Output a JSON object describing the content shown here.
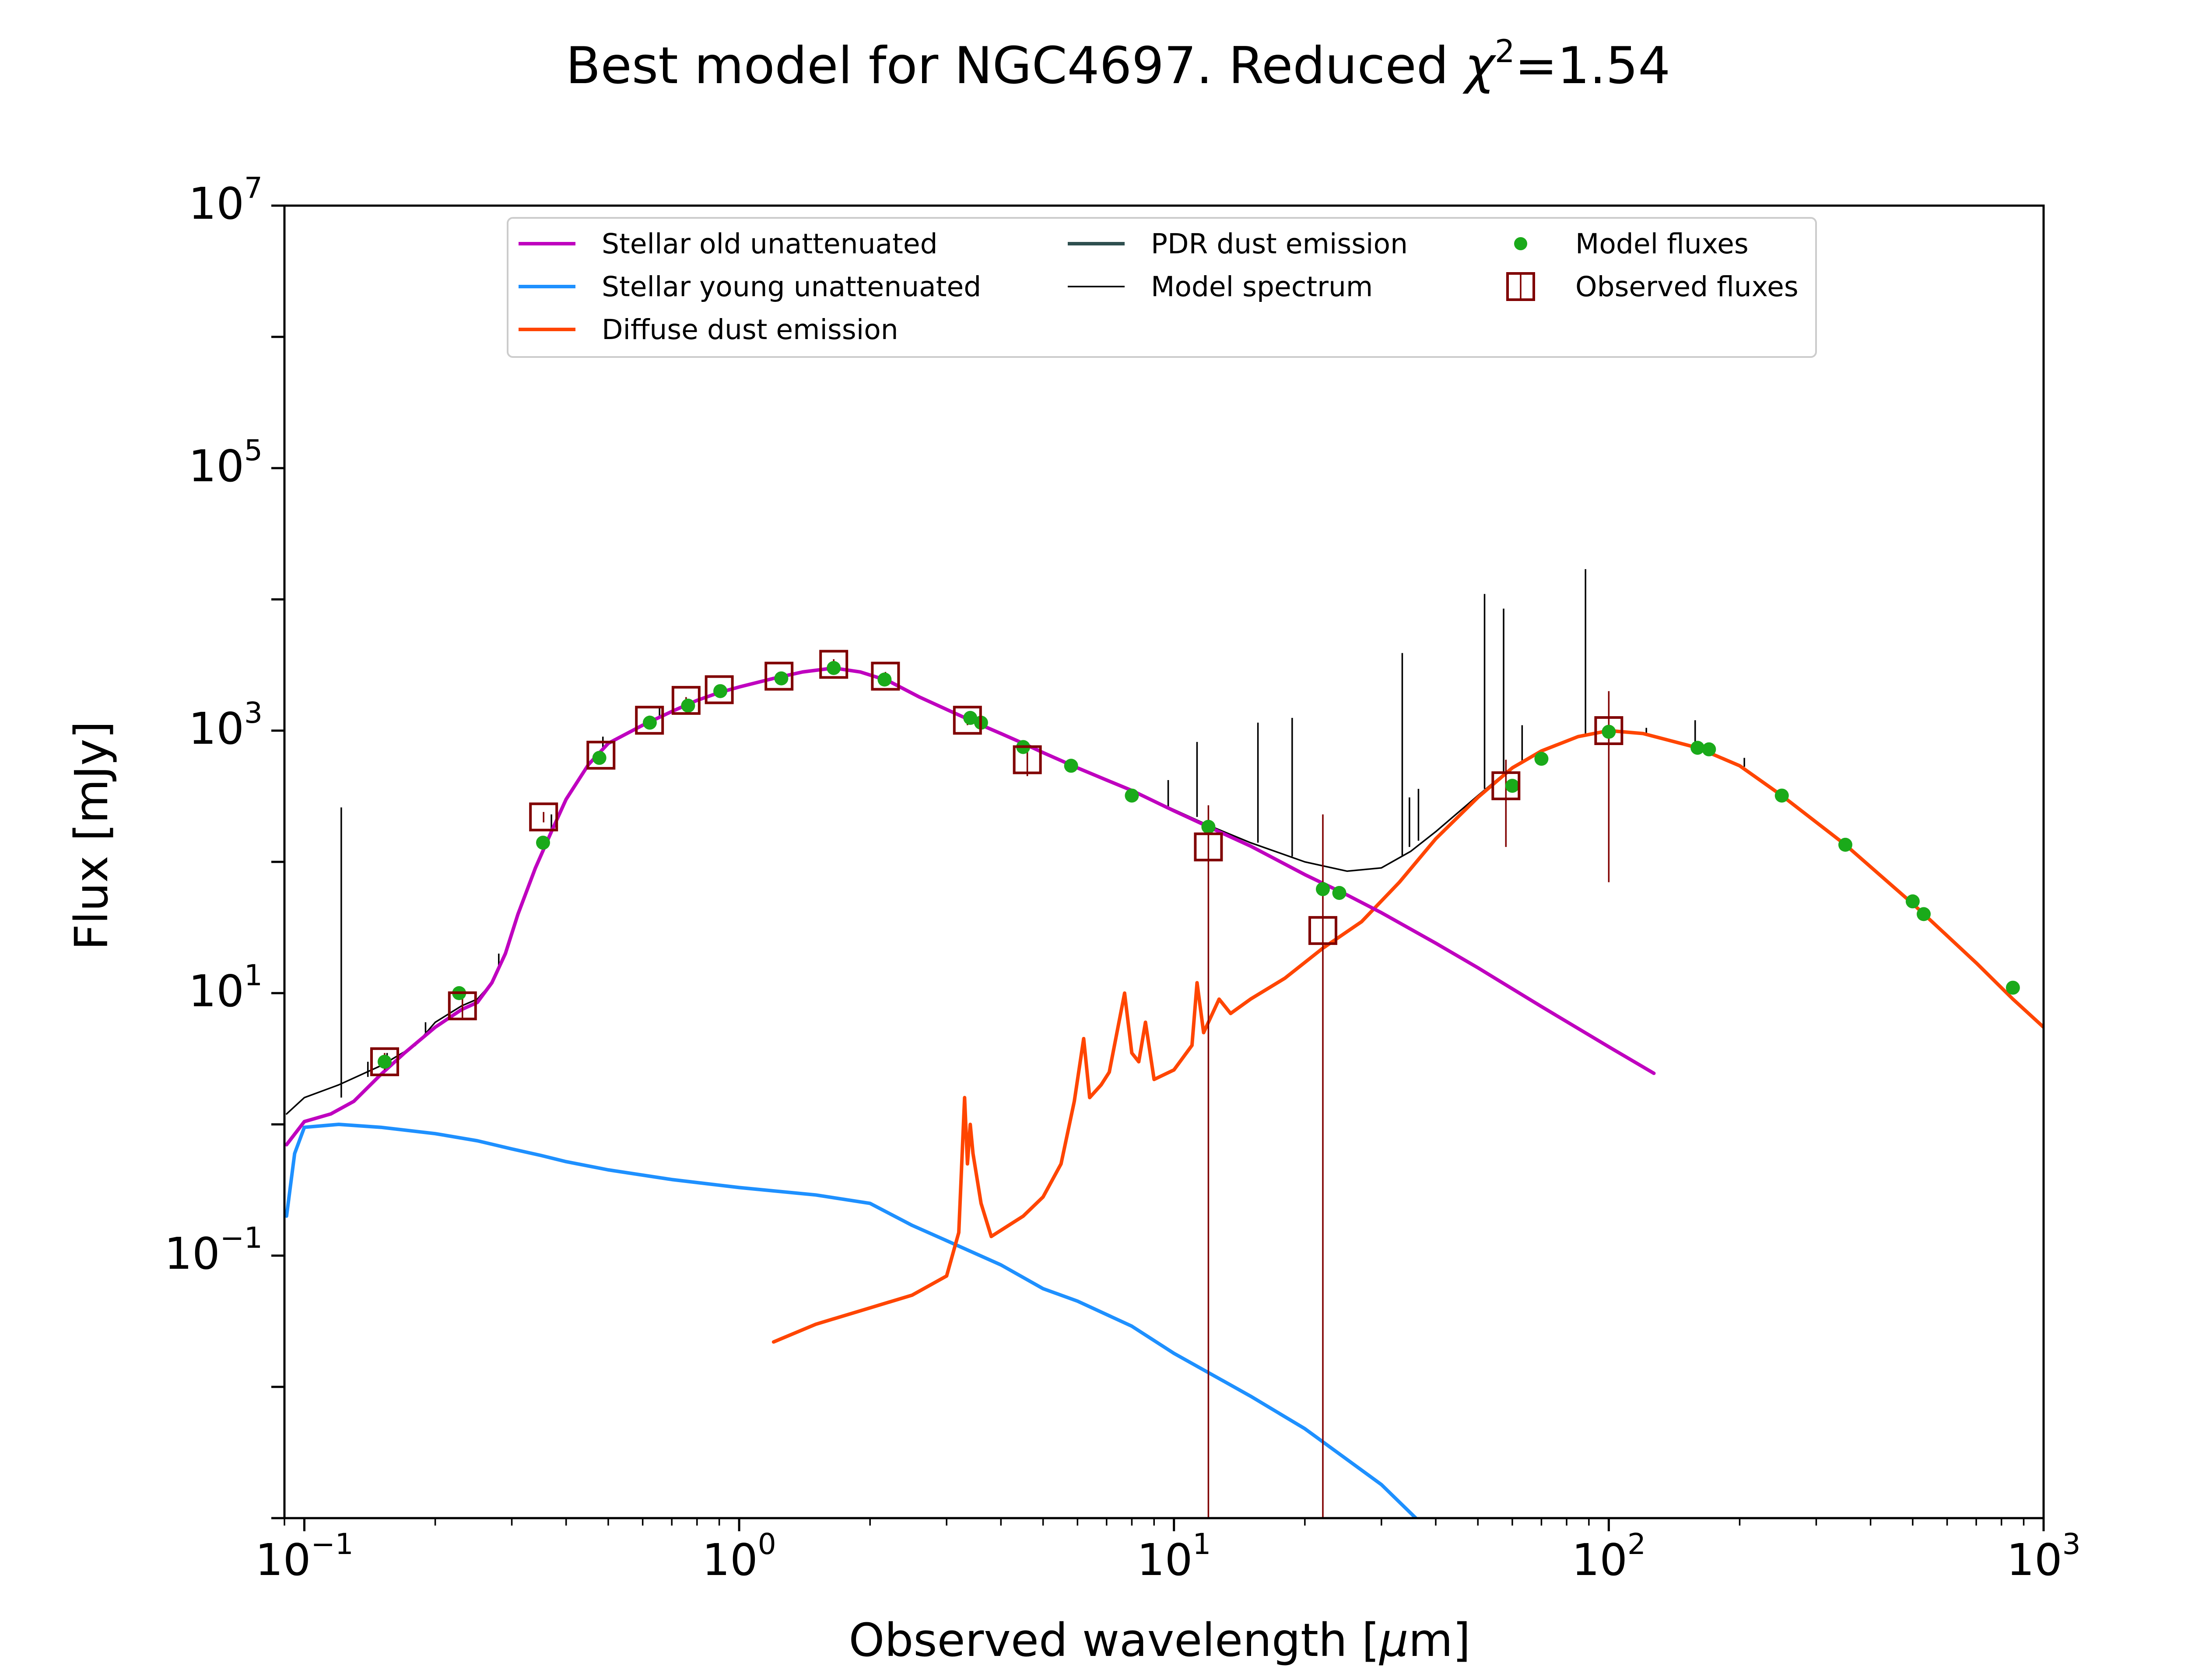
{
  "chart_data": {
    "type": "line",
    "title_main": "Best model for NGC4697. Reduced ",
    "title_chi": "χ",
    "title_sup": "2",
    "title_value": "=1.54",
    "xlabel_prefix": "Observed wavelength [",
    "xlabel_mu": "μ",
    "xlabel_suffix": "m]",
    "ylabel": "Flux [mJy]",
    "x_scale": "log",
    "y_scale": "log",
    "xlim": [
      0.09,
      1000
    ],
    "ylim": [
      0.001,
      10000000
    ],
    "grid": false,
    "legend_position": "top-center",
    "x_ticks": [
      {
        "base": "10",
        "exp": "−1",
        "value": 0.1
      },
      {
        "base": "10",
        "exp": "0",
        "value": 1
      },
      {
        "base": "10",
        "exp": "1",
        "value": 10
      },
      {
        "base": "10",
        "exp": "2",
        "value": 100
      },
      {
        "base": "10",
        "exp": "3",
        "value": 1000
      }
    ],
    "y_ticks": [
      {
        "base": "10",
        "exp": "−1",
        "value": 0.1
      },
      {
        "base": "10",
        "exp": "1",
        "value": 10
      },
      {
        "base": "10",
        "exp": "3",
        "value": 1000
      },
      {
        "base": "10",
        "exp": "5",
        "value": 100000
      },
      {
        "base": "10",
        "exp": "7",
        "value": 10000000
      }
    ],
    "colors": {
      "stellar_old": "#bf00bf",
      "stellar_young": "#1e90ff",
      "diffuse_dust": "#ff4500",
      "pdr_dust": "#2f4f4f",
      "model_spectrum": "#000000",
      "model_fluxes": "#1aaa1a",
      "observed_fluxes": "#800000"
    },
    "legend": [
      {
        "key": "stellar_old",
        "label": "Stellar old unattenuated",
        "kind": "line"
      },
      {
        "key": "stellar_young",
        "label": "Stellar young unattenuated",
        "kind": "line"
      },
      {
        "key": "diffuse_dust",
        "label": "Diffuse dust emission",
        "kind": "line"
      },
      {
        "key": "pdr_dust",
        "label": "PDR dust emission",
        "kind": "line"
      },
      {
        "key": "model_spectrum",
        "label": "Model spectrum",
        "kind": "thinline"
      },
      {
        "key": "model_fluxes",
        "label": "Model fluxes",
        "kind": "dot"
      },
      {
        "key": "observed_fluxes",
        "label": "Observed fluxes",
        "kind": "square"
      }
    ],
    "series": [
      {
        "key": "stellar_old",
        "points": [
          [
            0.091,
            0.7
          ],
          [
            0.1,
            1.05
          ],
          [
            0.115,
            1.2
          ],
          [
            0.13,
            1.5
          ],
          [
            0.15,
            2.4
          ],
          [
            0.17,
            3.5
          ],
          [
            0.2,
            5.5
          ],
          [
            0.23,
            7.5
          ],
          [
            0.25,
            8.5
          ],
          [
            0.27,
            12
          ],
          [
            0.29,
            20
          ],
          [
            0.31,
            40
          ],
          [
            0.34,
            90
          ],
          [
            0.37,
            170
          ],
          [
            0.4,
            300
          ],
          [
            0.45,
            550
          ],
          [
            0.5,
            800
          ],
          [
            0.6,
            1100
          ],
          [
            0.7,
            1400
          ],
          [
            0.8,
            1700
          ],
          [
            0.9,
            1950
          ],
          [
            1.0,
            2150
          ],
          [
            1.2,
            2500
          ],
          [
            1.4,
            2800
          ],
          [
            1.65,
            3000
          ],
          [
            1.9,
            2800
          ],
          [
            2.2,
            2400
          ],
          [
            2.6,
            1800
          ],
          [
            3.0,
            1450
          ],
          [
            3.5,
            1150
          ],
          [
            4.0,
            950
          ],
          [
            4.5,
            800
          ],
          [
            5.0,
            680
          ],
          [
            6.0,
            520
          ],
          [
            7.0,
            420
          ],
          [
            8.0,
            350
          ],
          [
            10.0,
            245
          ],
          [
            12.0,
            185
          ],
          [
            15.0,
            132
          ],
          [
            20.0,
            80
          ],
          [
            25.0,
            56
          ],
          [
            30.0,
            41
          ],
          [
            40.0,
            24
          ],
          [
            50.0,
            15.6
          ],
          [
            70.0,
            7.9
          ],
          [
            100.0,
            3.9
          ],
          [
            127.0,
            2.45
          ]
        ]
      },
      {
        "key": "stellar_young",
        "points": [
          [
            0.091,
            0.2
          ],
          [
            0.095,
            0.6
          ],
          [
            0.1,
            0.95
          ],
          [
            0.12,
            1.0
          ],
          [
            0.15,
            0.95
          ],
          [
            0.2,
            0.85
          ],
          [
            0.25,
            0.75
          ],
          [
            0.3,
            0.65
          ],
          [
            0.35,
            0.58
          ],
          [
            0.4,
            0.52
          ],
          [
            0.5,
            0.45
          ],
          [
            0.7,
            0.38
          ],
          [
            1.0,
            0.33
          ],
          [
            1.5,
            0.29
          ],
          [
            2.0,
            0.25
          ],
          [
            2.5,
            0.17
          ],
          [
            3.0,
            0.13
          ],
          [
            4.0,
            0.085
          ],
          [
            5.0,
            0.056
          ],
          [
            6.0,
            0.045
          ],
          [
            8.0,
            0.029
          ],
          [
            10.0,
            0.018
          ],
          [
            15.0,
            0.0085
          ],
          [
            20.0,
            0.0048
          ],
          [
            30.0,
            0.0018
          ],
          [
            36.0,
            0.001
          ]
        ]
      },
      {
        "key": "diffuse_dust",
        "points": [
          [
            1.2,
            0.022
          ],
          [
            1.5,
            0.03
          ],
          [
            2.0,
            0.04
          ],
          [
            2.5,
            0.05
          ],
          [
            3.0,
            0.07
          ],
          [
            3.2,
            0.15
          ],
          [
            3.3,
            1.6
          ],
          [
            3.35,
            0.5
          ],
          [
            3.4,
            1.0
          ],
          [
            3.45,
            0.6
          ],
          [
            3.6,
            0.25
          ],
          [
            3.8,
            0.14
          ],
          [
            4.5,
            0.2
          ],
          [
            5.0,
            0.28
          ],
          [
            5.5,
            0.5
          ],
          [
            5.9,
            1.5
          ],
          [
            6.2,
            4.5
          ],
          [
            6.4,
            1.6
          ],
          [
            6.8,
            2.0
          ],
          [
            7.1,
            2.5
          ],
          [
            7.7,
            10.0
          ],
          [
            8.0,
            3.5
          ],
          [
            8.3,
            3.0
          ],
          [
            8.6,
            6.0
          ],
          [
            9.0,
            2.2
          ],
          [
            10.0,
            2.6
          ],
          [
            11.0,
            4.0
          ],
          [
            11.3,
            12.0
          ],
          [
            11.7,
            5.0
          ],
          [
            12.7,
            9.0
          ],
          [
            13.5,
            7.0
          ],
          [
            15.0,
            9.0
          ],
          [
            18.0,
            13.0
          ],
          [
            22.0,
            22.0
          ],
          [
            27.0,
            35.0
          ],
          [
            33.0,
            70.0
          ],
          [
            40.0,
            150.0
          ],
          [
            50.0,
            310.0
          ],
          [
            60.0,
            520.0
          ],
          [
            70.0,
            700.0
          ],
          [
            85.0,
            900.0
          ],
          [
            100.0,
            1000.0
          ],
          [
            120.0,
            950.0
          ],
          [
            160.0,
            740.0
          ],
          [
            200.0,
            540.0
          ],
          [
            250.0,
            320.0
          ],
          [
            350.0,
            135.0
          ],
          [
            500.0,
            48.0
          ],
          [
            700.0,
            17.0
          ],
          [
            850.0,
            9.0
          ],
          [
            1000.0,
            5.5
          ]
        ]
      },
      {
        "key": "model_spectrum",
        "points": [
          [
            0.091,
            1.2
          ],
          [
            0.1,
            1.6
          ],
          [
            0.12,
            2.0
          ],
          [
            0.15,
            2.8
          ],
          [
            0.18,
            4.0
          ],
          [
            0.2,
            6.0
          ],
          [
            0.23,
            8.0
          ],
          [
            0.25,
            9.0
          ],
          [
            0.27,
            12.0
          ],
          [
            0.29,
            20.0
          ],
          [
            0.31,
            40.0
          ],
          [
            0.34,
            90.0
          ],
          [
            0.37,
            170.0
          ],
          [
            0.4,
            300.0
          ],
          [
            0.45,
            550.0
          ],
          [
            0.5,
            800.0
          ],
          [
            0.6,
            1100.0
          ],
          [
            0.7,
            1400.0
          ],
          [
            0.8,
            1700.0
          ],
          [
            0.9,
            1950.0
          ],
          [
            1.0,
            2150.0
          ],
          [
            1.2,
            2500.0
          ],
          [
            1.4,
            2800.0
          ],
          [
            1.65,
            3000.0
          ],
          [
            1.9,
            2800.0
          ],
          [
            2.2,
            2400.0
          ],
          [
            2.6,
            1800.0
          ],
          [
            3.0,
            1450.0
          ],
          [
            3.5,
            1150.0
          ],
          [
            4.0,
            950.0
          ],
          [
            4.5,
            800.0
          ],
          [
            5.0,
            680.0
          ],
          [
            6.0,
            520.0
          ],
          [
            7.0,
            420.0
          ],
          [
            8.0,
            350.0
          ],
          [
            10.0,
            250.0
          ],
          [
            12.0,
            190.0
          ],
          [
            15.0,
            140.0
          ],
          [
            20.0,
            100.0
          ],
          [
            25.0,
            85.0
          ],
          [
            30.0,
            90.0
          ],
          [
            35.0,
            120.0
          ],
          [
            40.0,
            170.0
          ],
          [
            50.0,
            320.0
          ],
          [
            60.0,
            530.0
          ],
          [
            70.0,
            710.0
          ],
          [
            85.0,
            905.0
          ],
          [
            100.0,
            1000.0
          ],
          [
            120.0,
            950.0
          ],
          [
            160.0,
            740.0
          ],
          [
            200.0,
            540.0
          ],
          [
            250.0,
            320.0
          ],
          [
            350.0,
            135.0
          ],
          [
            500.0,
            48.0
          ],
          [
            700.0,
            17.0
          ],
          [
            850.0,
            9.0
          ],
          [
            1000.0,
            5.5
          ]
        ]
      }
    ],
    "emission_lines": [
      {
        "x": 0.1216,
        "y_base": 1.6,
        "y_top": 260
      },
      {
        "x": 0.14,
        "y_base": 2.3,
        "y_top": 3.0
      },
      {
        "x": 0.155,
        "y_base": 2.9,
        "y_top": 3.5
      },
      {
        "x": 0.19,
        "y_base": 5.0,
        "y_top": 6.0
      },
      {
        "x": 0.28,
        "y_base": 15,
        "y_top": 20
      },
      {
        "x": 0.37,
        "y_base": 170,
        "y_top": 230
      },
      {
        "x": 0.486,
        "y_base": 750,
        "y_top": 900
      },
      {
        "x": 0.656,
        "y_base": 1250,
        "y_top": 1500
      },
      {
        "x": 9.7,
        "y_base": 260,
        "y_top": 420
      },
      {
        "x": 11.3,
        "y_base": 220,
        "y_top": 820
      },
      {
        "x": 15.6,
        "y_base": 140,
        "y_top": 1150
      },
      {
        "x": 18.7,
        "y_base": 110,
        "y_top": 1250
      },
      {
        "x": 33.5,
        "y_base": 110,
        "y_top": 3900
      },
      {
        "x": 34.8,
        "y_base": 130,
        "y_top": 310
      },
      {
        "x": 36.5,
        "y_base": 145,
        "y_top": 360
      },
      {
        "x": 51.8,
        "y_base": 360,
        "y_top": 11000
      },
      {
        "x": 57.3,
        "y_base": 470,
        "y_top": 8500
      },
      {
        "x": 63.2,
        "y_base": 570,
        "y_top": 1100
      },
      {
        "x": 88.4,
        "y_base": 950,
        "y_top": 17000
      },
      {
        "x": 122.0,
        "y_base": 960,
        "y_top": 1050
      },
      {
        "x": 158.0,
        "y_base": 750,
        "y_top": 1200
      },
      {
        "x": 205.0,
        "y_base": 530,
        "y_top": 620
      }
    ],
    "model_fluxes": [
      [
        0.153,
        3.0
      ],
      [
        0.227,
        10.0
      ],
      [
        0.354,
        140.0
      ],
      [
        0.477,
        620.0
      ],
      [
        0.623,
        1150.0
      ],
      [
        0.763,
        1550.0
      ],
      [
        0.905,
        2000.0
      ],
      [
        1.25,
        2500.0
      ],
      [
        1.65,
        3000.0
      ],
      [
        2.16,
        2450.0
      ],
      [
        3.4,
        1250.0
      ],
      [
        3.6,
        1150.0
      ],
      [
        4.5,
        750.0
      ],
      [
        5.8,
        540.0
      ],
      [
        8.0,
        320.0
      ],
      [
        12.0,
        185.0
      ],
      [
        22.0,
        62.0
      ],
      [
        24.0,
        58.0
      ],
      [
        60.0,
        380.0
      ],
      [
        70.0,
        610.0
      ],
      [
        100.0,
        980.0
      ],
      [
        160.0,
        740.0
      ],
      [
        170.0,
        720.0
      ],
      [
        250.0,
        320.0
      ],
      [
        350.0,
        135.0
      ],
      [
        500.0,
        50.0
      ],
      [
        530.0,
        40.0
      ],
      [
        850.0,
        11.0
      ]
    ],
    "observed_fluxes": [
      {
        "x": 0.153,
        "y": 3.0,
        "err_low": 2.6,
        "err_high": 3.5
      },
      {
        "x": 0.231,
        "y": 8.0,
        "err_low": 6.5,
        "err_high": 9.5
      },
      {
        "x": 0.355,
        "y": 220.0,
        "err_low": 200.0,
        "err_high": 240.0
      },
      {
        "x": 0.481,
        "y": 650.0,
        "err_low": 600.0,
        "err_high": 700.0
      },
      {
        "x": 0.622,
        "y": 1200.0,
        "err_low": 1100.0,
        "err_high": 1300.0
      },
      {
        "x": 0.755,
        "y": 1700.0,
        "err_low": 1600.0,
        "err_high": 1800.0
      },
      {
        "x": 0.9,
        "y": 2050.0,
        "err_low": 1900.0,
        "err_high": 2200.0
      },
      {
        "x": 1.235,
        "y": 2600.0,
        "err_low": 2400.0,
        "err_high": 2800.0
      },
      {
        "x": 1.65,
        "y": 3200.0,
        "err_low": 2900.0,
        "err_high": 3500.0
      },
      {
        "x": 2.17,
        "y": 2600.0,
        "err_low": 2400.0,
        "err_high": 2800.0
      },
      {
        "x": 3.35,
        "y": 1200.0,
        "err_low": 1100.0,
        "err_high": 1300.0
      },
      {
        "x": 4.6,
        "y": 600.0,
        "err_low": 450.0,
        "err_high": 700.0
      },
      {
        "x": 12.0,
        "y": 130.0,
        "err_low": 0.001,
        "err_high": 270.0
      },
      {
        "x": 22.0,
        "y": 30.0,
        "err_low": 0.001,
        "err_high": 230.0
      },
      {
        "x": 58.0,
        "y": 380.0,
        "err_low": 130.0,
        "err_high": 600.0
      },
      {
        "x": 100.0,
        "y": 1000.0,
        "err_low": 70.0,
        "err_high": 2000.0
      }
    ]
  }
}
